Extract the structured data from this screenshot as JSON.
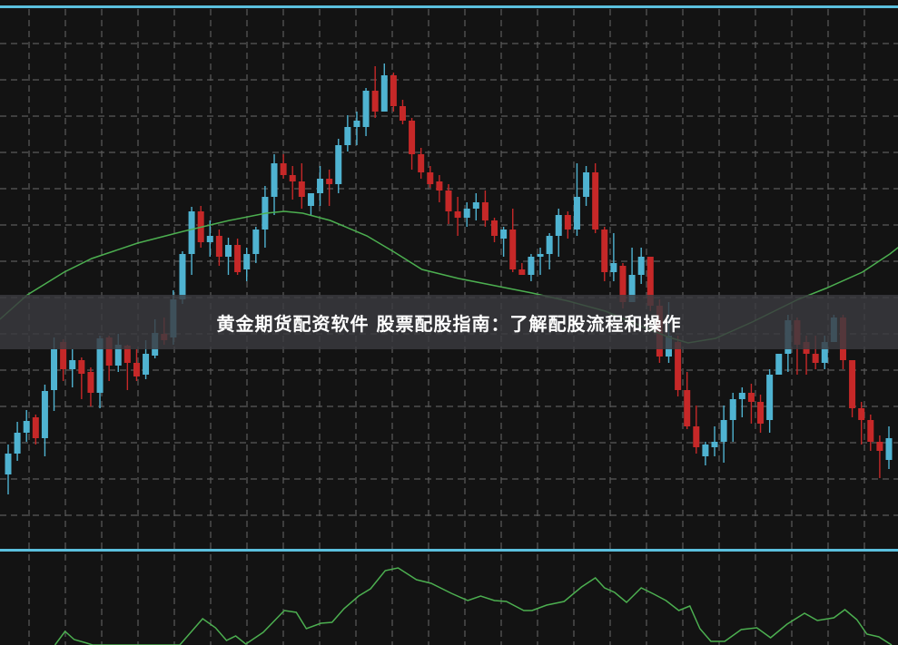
{
  "banner": {
    "title": "黄金期货配资软件 股票配股指南：了解配股流程和操作"
  },
  "colors": {
    "background": "#131313",
    "grid": "#5a5a5a",
    "up": "#4fb3d1",
    "down": "#c62828",
    "ma": "#4caf50",
    "indicator": "#4caf50",
    "separator": "#5bc0de"
  },
  "chart_data": [
    {
      "type": "candlestick",
      "title": "",
      "grid": true,
      "ohlc_format": [
        "open",
        "high",
        "low",
        "close"
      ],
      "candles": [
        [
          77,
          110,
          55,
          100
        ],
        [
          100,
          135,
          92,
          123
        ],
        [
          123,
          148,
          113,
          136
        ],
        [
          140,
          143,
          110,
          117
        ],
        [
          117,
          176,
          97,
          169
        ],
        [
          170,
          228,
          147,
          215
        ],
        [
          223,
          226,
          180,
          193
        ],
        [
          193,
          215,
          173,
          203
        ],
        [
          203,
          206,
          160,
          188
        ],
        [
          190,
          195,
          152,
          167
        ],
        [
          167,
          230,
          150,
          227
        ],
        [
          228,
          230,
          180,
          197
        ],
        [
          197,
          232,
          190,
          220
        ],
        [
          219,
          220,
          170,
          200
        ],
        [
          200,
          215,
          180,
          185
        ],
        [
          187,
          225,
          182,
          210
        ],
        [
          208,
          248,
          205,
          233
        ],
        [
          232,
          250,
          220,
          225
        ],
        [
          228,
          280,
          220,
          270
        ],
        [
          270,
          323,
          265,
          320
        ],
        [
          320,
          372,
          297,
          367
        ],
        [
          367,
          373,
          327,
          333
        ],
        [
          333,
          357,
          317,
          340
        ],
        [
          340,
          347,
          307,
          317
        ],
        [
          317,
          338,
          297,
          330
        ],
        [
          330,
          337,
          297,
          300
        ],
        [
          303,
          327,
          290,
          320
        ],
        [
          320,
          350,
          310,
          347
        ],
        [
          347,
          395,
          327,
          383
        ],
        [
          383,
          430,
          363,
          420
        ],
        [
          420,
          430,
          403,
          407
        ],
        [
          407,
          417,
          380,
          400
        ],
        [
          400,
          420,
          370,
          383
        ],
        [
          373,
          387,
          363,
          387
        ],
        [
          387,
          417,
          373,
          403
        ],
        [
          403,
          413,
          373,
          397
        ],
        [
          397,
          447,
          387,
          440
        ],
        [
          440,
          473,
          433,
          460
        ],
        [
          460,
          477,
          440,
          467
        ],
        [
          460,
          503,
          450,
          500
        ],
        [
          500,
          527,
          470,
          477
        ],
        [
          477,
          530,
          477,
          517
        ],
        [
          517,
          520,
          477,
          483
        ],
        [
          483,
          490,
          463,
          467
        ],
        [
          467,
          470,
          413,
          430
        ],
        [
          430,
          437,
          403,
          410
        ],
        [
          410,
          417,
          393,
          397
        ],
        [
          400,
          407,
          377,
          390
        ],
        [
          390,
          397,
          353,
          367
        ],
        [
          367,
          383,
          340,
          360
        ],
        [
          360,
          377,
          350,
          370
        ],
        [
          370,
          387,
          357,
          377
        ],
        [
          377,
          390,
          350,
          357
        ],
        [
          357,
          360,
          333,
          340
        ],
        [
          337,
          350,
          317,
          347
        ],
        [
          347,
          370,
          300,
          303
        ],
        [
          303,
          310,
          297,
          297
        ],
        [
          297,
          320,
          290,
          317
        ],
        [
          317,
          327,
          297,
          320
        ],
        [
          320,
          343,
          303,
          340
        ],
        [
          340,
          370,
          317,
          363
        ],
        [
          363,
          367,
          337,
          347
        ],
        [
          347,
          420,
          340,
          383
        ],
        [
          383,
          417,
          373,
          410
        ],
        [
          410,
          420,
          343,
          347
        ],
        [
          347,
          350,
          290,
          300
        ],
        [
          300,
          343,
          290,
          310
        ],
        [
          307,
          310,
          260,
          267
        ],
        [
          267,
          327,
          267,
          297
        ],
        [
          297,
          327,
          287,
          317
        ],
        [
          317,
          317,
          257,
          263
        ],
        [
          263,
          270,
          200,
          207
        ],
        [
          207,
          267,
          200,
          230
        ],
        [
          223,
          230,
          163,
          170
        ],
        [
          170,
          190,
          127,
          130
        ],
        [
          130,
          153,
          100,
          107
        ],
        [
          97,
          113,
          87,
          110
        ],
        [
          107,
          130,
          97,
          113
        ],
        [
          113,
          153,
          90,
          137
        ],
        [
          137,
          167,
          113,
          160
        ],
        [
          160,
          173,
          140,
          167
        ],
        [
          167,
          177,
          133,
          157
        ],
        [
          157,
          165,
          123,
          133
        ],
        [
          137,
          193,
          123,
          187
        ],
        [
          187,
          210,
          187,
          210
        ],
        [
          210,
          253,
          190,
          247
        ],
        [
          247,
          250,
          187,
          220
        ],
        [
          223,
          230,
          187,
          210
        ],
        [
          210,
          230,
          193,
          200
        ],
        [
          200,
          230,
          193,
          223
        ],
        [
          223,
          253,
          223,
          250
        ],
        [
          250,
          253,
          193,
          203
        ],
        [
          203,
          203,
          140,
          150
        ],
        [
          150,
          157,
          110,
          137
        ],
        [
          137,
          143,
          103,
          113
        ],
        [
          113,
          120,
          73,
          103
        ],
        [
          93,
          130,
          83,
          117
        ]
      ],
      "moving_average": [
        [
          -0.9,
          248
        ],
        [
          2.1,
          275
        ],
        [
          6.1,
          300
        ],
        [
          9.1,
          315
        ],
        [
          14.1,
          332
        ],
        [
          19.1,
          345
        ],
        [
          24.1,
          357
        ],
        [
          28.1,
          365
        ],
        [
          30.1,
          367
        ],
        [
          32.1,
          365
        ],
        [
          35.1,
          357
        ],
        [
          39.1,
          340
        ],
        [
          42.1,
          322
        ],
        [
          45.1,
          303
        ],
        [
          49.1,
          293
        ],
        [
          53.1,
          285
        ],
        [
          57.1,
          277
        ],
        [
          61.1,
          268
        ],
        [
          65.1,
          257
        ],
        [
          69.1,
          240
        ],
        [
          72.1,
          228
        ],
        [
          74.1,
          222
        ],
        [
          77.1,
          227
        ],
        [
          81.1,
          245
        ],
        [
          86.1,
          270
        ],
        [
          89.1,
          282
        ],
        [
          93.1,
          300
        ],
        [
          96.1,
          320
        ],
        [
          98,
          335
        ]
      ]
    },
    {
      "type": "line",
      "title": "",
      "grid": true,
      "points": [
        [
          5.1,
          0
        ],
        [
          6.2,
          15
        ],
        [
          7.2,
          6
        ],
        [
          8.6,
          2
        ],
        [
          9.2,
          0
        ],
        [
          18.7,
          0
        ],
        [
          21.2,
          29
        ],
        [
          22.6,
          19
        ],
        [
          23.8,
          5
        ],
        [
          24.8,
          10
        ],
        [
          25.9,
          1
        ],
        [
          27.8,
          14
        ],
        [
          30.1,
          38
        ],
        [
          31.4,
          36
        ],
        [
          32.5,
          18
        ],
        [
          34.1,
          24
        ],
        [
          35.3,
          25
        ],
        [
          36.6,
          40
        ],
        [
          38.2,
          54
        ],
        [
          39.5,
          62
        ],
        [
          41.1,
          82
        ],
        [
          42.5,
          85
        ],
        [
          44.5,
          72
        ],
        [
          46.1,
          68
        ],
        [
          48.3,
          57
        ],
        [
          50.1,
          49
        ],
        [
          51.5,
          54
        ],
        [
          53,
          49
        ],
        [
          54.3,
          48
        ],
        [
          56.2,
          38
        ],
        [
          57.1,
          38
        ],
        [
          58.7,
          44
        ],
        [
          60.6,
          48
        ],
        [
          62.5,
          64
        ],
        [
          64,
          74
        ],
        [
          65,
          63
        ],
        [
          66.1,
          58
        ],
        [
          67.4,
          47
        ],
        [
          69,
          63
        ],
        [
          70.4,
          56
        ],
        [
          71.7,
          49
        ],
        [
          73.1,
          38
        ],
        [
          74.3,
          43
        ],
        [
          75.4,
          18
        ],
        [
          76.6,
          4
        ],
        [
          78.1,
          4
        ],
        [
          79.9,
          17
        ],
        [
          81.6,
          19
        ],
        [
          83.1,
          8
        ],
        [
          84.9,
          23
        ],
        [
          86.8,
          35
        ],
        [
          88.2,
          27
        ],
        [
          90,
          30
        ],
        [
          91.2,
          39
        ],
        [
          92.5,
          28
        ],
        [
          93.6,
          12
        ],
        [
          94.9,
          9
        ],
        [
          96.3,
          0
        ]
      ]
    }
  ]
}
